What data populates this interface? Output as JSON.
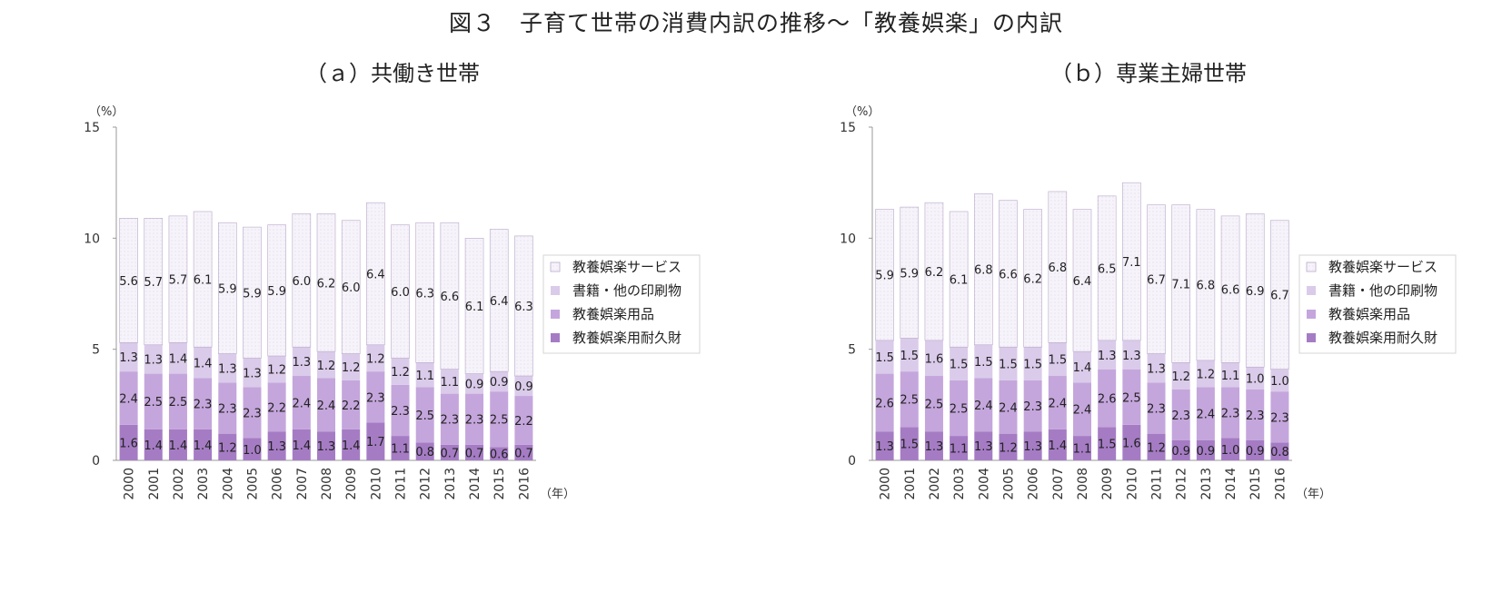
{
  "title": "図３　子育て世帯の消費内訳の推移～「教養娯楽」の内訳",
  "colors": {
    "durable": "#a57cc4",
    "goods": "#c4a6dc",
    "books": "#dacbea",
    "service": "#f6f3fa",
    "border": "#b9a9c9",
    "axis": "#999999"
  },
  "chart_data": [
    {
      "type": "bar",
      "stacked": true,
      "subtitle": "（ａ）共働き世帯",
      "yunit": "（%）",
      "xunit": "（年）",
      "ylim": [
        0,
        15
      ],
      "yticks": [
        0,
        5,
        10,
        15
      ],
      "legend_position": "right",
      "categories": [
        "2000",
        "2001",
        "2002",
        "2003",
        "2004",
        "2005",
        "2006",
        "2007",
        "2008",
        "2009",
        "2010",
        "2011",
        "2012",
        "2013",
        "2014",
        "2015",
        "2016"
      ],
      "series": [
        {
          "name": "教養娯楽用耐久財",
          "color_key": "durable",
          "values": [
            1.6,
            1.4,
            1.4,
            1.4,
            1.2,
            1.0,
            1.3,
            1.4,
            1.3,
            1.4,
            1.7,
            1.1,
            0.8,
            0.7,
            0.7,
            0.6,
            0.7
          ]
        },
        {
          "name": "教養娯楽用品",
          "color_key": "goods",
          "values": [
            2.4,
            2.5,
            2.5,
            2.3,
            2.3,
            2.3,
            2.2,
            2.4,
            2.4,
            2.2,
            2.3,
            2.3,
            2.5,
            2.3,
            2.3,
            2.5,
            2.2
          ]
        },
        {
          "name": "書籍・他の印刷物",
          "color_key": "books",
          "values": [
            1.3,
            1.3,
            1.4,
            1.4,
            1.3,
            1.3,
            1.2,
            1.3,
            1.2,
            1.2,
            1.2,
            1.2,
            1.1,
            1.1,
            0.9,
            0.9,
            0.9
          ]
        },
        {
          "name": "教養娯楽サービス",
          "color_key": "service",
          "values": [
            5.6,
            5.7,
            5.7,
            6.1,
            5.9,
            5.9,
            5.9,
            6.0,
            6.2,
            6.0,
            6.4,
            6.0,
            6.3,
            6.6,
            6.1,
            6.4,
            6.3
          ]
        }
      ]
    },
    {
      "type": "bar",
      "stacked": true,
      "subtitle": "（ｂ）専業主婦世帯",
      "yunit": "（%）",
      "xunit": "（年）",
      "ylim": [
        0,
        15
      ],
      "yticks": [
        0,
        5,
        10,
        15
      ],
      "legend_position": "right",
      "categories": [
        "2000",
        "2001",
        "2002",
        "2003",
        "2004",
        "2005",
        "2006",
        "2007",
        "2008",
        "2009",
        "2010",
        "2011",
        "2012",
        "2013",
        "2014",
        "2015",
        "2016"
      ],
      "series": [
        {
          "name": "教養娯楽用耐久財",
          "color_key": "durable",
          "values": [
            1.3,
            1.5,
            1.3,
            1.1,
            1.3,
            1.2,
            1.3,
            1.4,
            1.1,
            1.5,
            1.6,
            1.2,
            0.9,
            0.9,
            1.0,
            0.9,
            0.8
          ]
        },
        {
          "name": "教養娯楽用品",
          "color_key": "goods",
          "values": [
            2.6,
            2.5,
            2.5,
            2.5,
            2.4,
            2.4,
            2.3,
            2.4,
            2.4,
            2.6,
            2.5,
            2.3,
            2.3,
            2.4,
            2.3,
            2.3,
            2.3
          ]
        },
        {
          "name": "書籍・他の印刷物",
          "color_key": "books",
          "values": [
            1.5,
            1.5,
            1.6,
            1.5,
            1.5,
            1.5,
            1.5,
            1.5,
            1.4,
            1.3,
            1.3,
            1.3,
            1.2,
            1.2,
            1.1,
            1.0,
            1.0
          ]
        },
        {
          "name": "教養娯楽サービス",
          "color_key": "service",
          "values": [
            5.9,
            5.9,
            6.2,
            6.1,
            6.8,
            6.6,
            6.2,
            6.8,
            6.4,
            6.5,
            7.1,
            6.7,
            7.1,
            6.8,
            6.6,
            6.9,
            6.7
          ]
        }
      ]
    }
  ]
}
